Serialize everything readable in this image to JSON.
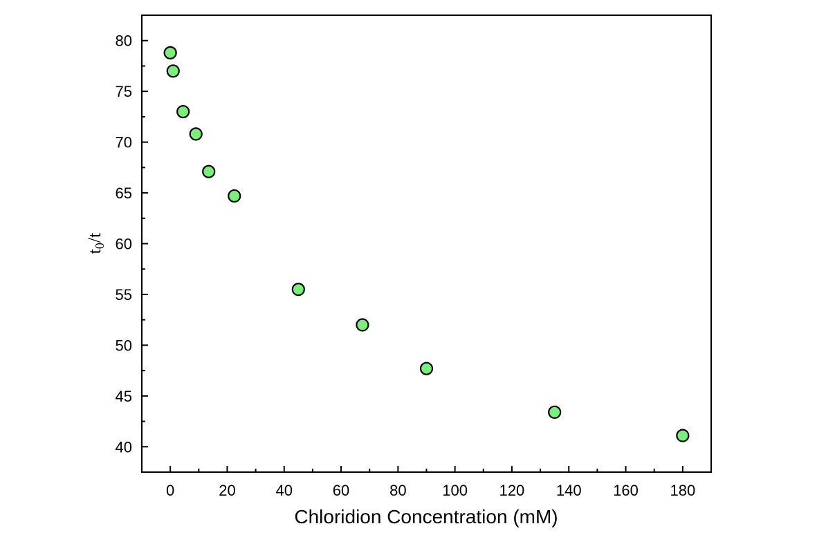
{
  "chart_data": {
    "type": "scatter",
    "title": "",
    "xlabel": "Chloridion Concentration (mM)",
    "ylabel": {
      "base": "t",
      "subscript": "0",
      "rest": "/t"
    },
    "xlim": [
      -10,
      190
    ],
    "ylim": [
      37.5,
      82.5
    ],
    "x_ticks": [
      0,
      20,
      40,
      60,
      80,
      100,
      120,
      140,
      160,
      180
    ],
    "x_tick_labels": [
      "0",
      "20",
      "40",
      "60",
      "80",
      "100",
      "120",
      "140",
      "160",
      "180"
    ],
    "y_ticks": [
      40,
      45,
      50,
      55,
      60,
      65,
      70,
      75,
      80
    ],
    "y_tick_labels": [
      "40",
      "45",
      "50",
      "55",
      "60",
      "65",
      "70",
      "75",
      "80"
    ],
    "x_minor_step": 10,
    "y_minor_step": 2.5,
    "grid": false,
    "legend": "none",
    "marker_color": "#79f07a",
    "marker_edge_color": "#000000",
    "x": [
      0,
      1,
      4.5,
      9,
      13.5,
      22.5,
      45,
      67.5,
      90,
      135,
      180
    ],
    "y": [
      78.8,
      77.0,
      73.0,
      70.8,
      67.1,
      64.7,
      55.5,
      52.0,
      47.7,
      43.4,
      41.1
    ]
  }
}
